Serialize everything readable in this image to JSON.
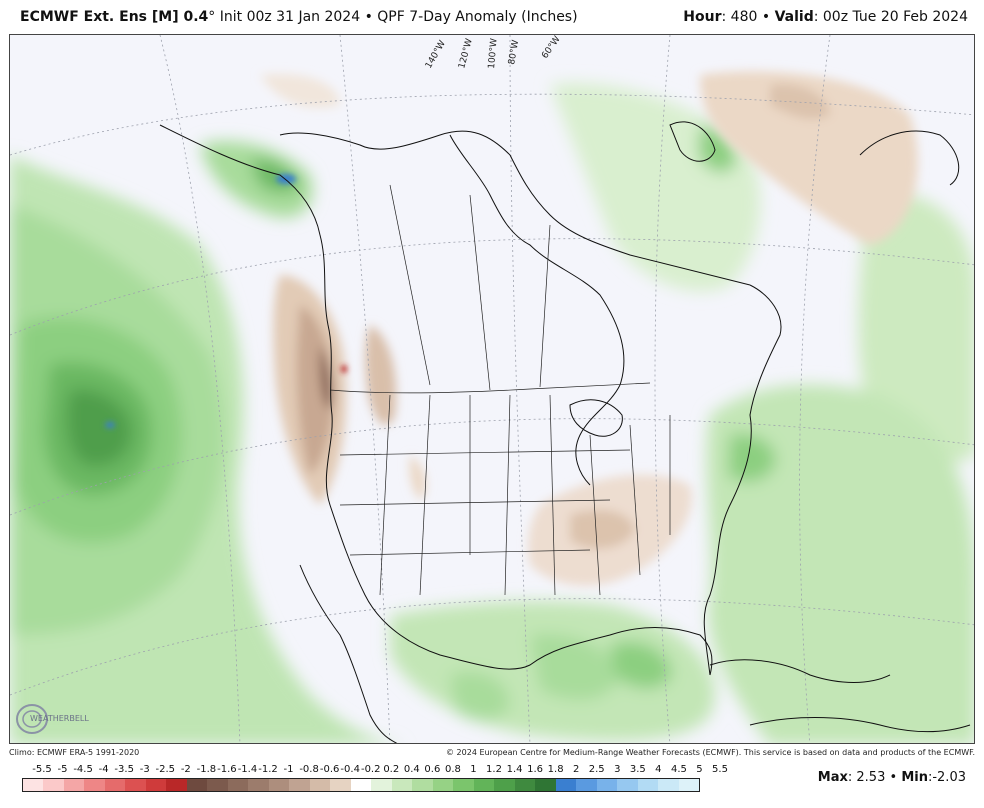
{
  "header": {
    "model": "ECMWF Ext. Ens [M] 0.4",
    "degree": "°",
    "init": "Init 00z 31 Jan 2024",
    "bullet": "•",
    "product": "QPF 7-Day Anomaly (Inches)",
    "hour_label": "Hour",
    "hour_value": ": 480",
    "valid_label": "Valid",
    "valid_value": ": 00z Tue 20 Feb 2024"
  },
  "map": {
    "longitude_labels": [
      "140°W",
      "120°W",
      "100°W",
      "80°W",
      "60°W"
    ],
    "logo_text": "WEATHERBELL"
  },
  "credits": {
    "climo": "Climo: ECMWF ERA-5 1991-2020",
    "copyright": "© 2024 European Centre for Medium-Range Weather Forecasts (ECMWF). This service is based on data and products of the ECMWF."
  },
  "legend": {
    "labels": [
      "-5.5",
      "-5",
      "-4.5",
      "-4",
      "-3.5",
      "-3",
      "-2.5",
      "-2",
      "-1.8",
      "-1.6",
      "-1.4",
      "-1.2",
      "-1",
      "-0.8",
      "-0.6",
      "-0.4",
      "-0.2",
      "0.2",
      "0.4",
      "0.6",
      "0.8",
      "1",
      "1.2",
      "1.4",
      "1.6",
      "1.8",
      "2",
      "2.5",
      "3",
      "3.5",
      "4",
      "4.5",
      "5",
      "5.5"
    ],
    "colors": [
      "#fde3e3",
      "#fbc9c9",
      "#f4a6a6",
      "#ee8686",
      "#e56b6b",
      "#dc5151",
      "#cf3b3b",
      "#b92828",
      "#6e4a3f",
      "#7c5a4d",
      "#8c6b5c",
      "#9c7c6c",
      "#ad8e7d",
      "#c0a392",
      "#d4bba8",
      "#e6d3c2",
      "#ffffff",
      "#e3f3dc",
      "#c9e8bc",
      "#b0dda0",
      "#96d285",
      "#7bc56c",
      "#62b459",
      "#4ea04a",
      "#3f8a3f",
      "#2f7534",
      "#3a7fd0",
      "#5a9ae0",
      "#78b2ea",
      "#96c8f0",
      "#b2dbf4",
      "#cbe9f7",
      "#ddf2f9"
    ]
  },
  "stats": {
    "max_label": "Max",
    "max_value": ": 2.53",
    "bullet": "•",
    "min_label": "Min",
    "min_value": ":-2.03"
  },
  "field": {
    "max": 2.53,
    "min": -2.03
  }
}
